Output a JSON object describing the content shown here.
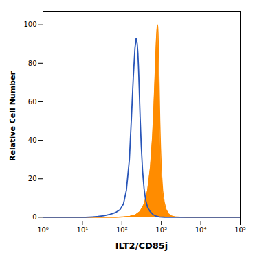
{
  "chart_data": {
    "type": "line",
    "xlabel": "ILT2/CD85j",
    "ylabel": "Relative Cell Number",
    "log": "x",
    "grid": false,
    "xlim": [
      1.0,
      100000.0
    ],
    "ylim": [
      -2,
      107
    ],
    "xticks": [
      {
        "value": 1,
        "label": "10⁰"
      },
      {
        "value": 10,
        "label": "10¹"
      },
      {
        "value": 100,
        "label": "10²"
      },
      {
        "value": 1000,
        "label": "10³"
      },
      {
        "value": 10000,
        "label": "10⁴"
      },
      {
        "value": 100000,
        "label": "10⁵"
      }
    ],
    "yticks": [
      0,
      20,
      40,
      60,
      80,
      100
    ],
    "series": [
      {
        "type": "area",
        "color": "#FF8C00",
        "x": [
          1,
          5,
          10,
          20,
          40,
          70,
          110,
          160,
          220,
          290,
          370,
          450,
          530,
          600,
          650,
          690,
          720,
          750,
          775,
          795,
          810,
          825,
          840,
          860,
          885,
          915,
          955,
          1010,
          1080,
          1180,
          1320,
          1520,
          1800,
          2200,
          3000,
          4500,
          8000,
          30000,
          100000
        ],
        "values": [
          0,
          0,
          0,
          0,
          0,
          0,
          0.2,
          0.5,
          1.2,
          3.0,
          7.0,
          14,
          26,
          42,
          58,
          72,
          83,
          92,
          97,
          100,
          99,
          96,
          90,
          80,
          66,
          50,
          36,
          23,
          14,
          8,
          4,
          1.8,
          0.7,
          0.2,
          0.05,
          0,
          0,
          0,
          0
        ]
      },
      {
        "type": "line",
        "color": "#2855B8",
        "x": [
          1,
          2,
          3,
          5,
          8,
          12,
          18,
          25,
          35,
          50,
          70,
          90,
          110,
          130,
          155,
          175,
          195,
          215,
          230,
          245,
          255,
          265,
          275,
          290,
          310,
          335,
          365,
          400,
          450,
          520,
          610,
          730,
          900,
          1200,
          1800,
          3000,
          6000,
          20000,
          100000
        ],
        "values": [
          0,
          0,
          0,
          0,
          0,
          0,
          0.2,
          0.4,
          0.8,
          1.5,
          2.5,
          4.0,
          7.0,
          14,
          30,
          52,
          73,
          88,
          93,
          90,
          85,
          77,
          67,
          52,
          37,
          24,
          15,
          9,
          5,
          3,
          1.5,
          0.6,
          0.2,
          0.05,
          0,
          0,
          0,
          0,
          0
        ]
      }
    ]
  }
}
